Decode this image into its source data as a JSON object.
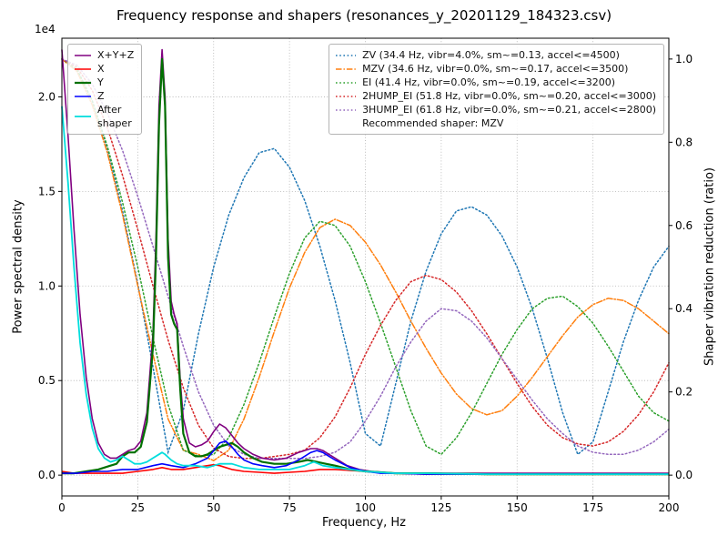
{
  "chart_data": {
    "type": "line",
    "title": "Frequency response and shapers (resonances_y_20201129_184323.csv)",
    "xlabel": "Frequency, Hz",
    "ylabel_left": "Power spectral density",
    "ylabel_right": "Shaper vibration reduction (ratio)",
    "axis_multiplier_label": "1e4",
    "grid_color": "#b0b0b0",
    "xlim": [
      0,
      200
    ],
    "x_ticks": [
      0,
      25,
      50,
      75,
      100,
      125,
      150,
      175,
      200
    ],
    "left_axis": {
      "unit": "1e4",
      "lim": [
        -0.11,
        2.31
      ],
      "tick_values": [
        0.0,
        0.5,
        1.0,
        1.5,
        2.0
      ],
      "tick_labels": [
        "0.0",
        "0.5",
        "1.0",
        "1.5",
        "2.0"
      ]
    },
    "right_axis": {
      "lim": [
        -0.05,
        1.05
      ],
      "tick_values": [
        0.0,
        0.2,
        0.4,
        0.6,
        0.8,
        1.0
      ],
      "tick_labels": [
        "0.0",
        "0.2",
        "0.4",
        "0.6",
        "0.8",
        "1.0"
      ]
    },
    "legend_note": "Recommended shaper: MZV",
    "psd_series": [
      {
        "label": "X+Y+Z",
        "color": "#800080",
        "linestyle": "solid",
        "width": 1.6,
        "x": [
          0,
          2,
          4,
          6,
          8,
          10,
          12,
          14,
          16,
          18,
          20,
          22,
          24,
          26,
          28,
          30,
          31,
          32,
          33,
          34,
          35,
          36,
          37,
          38,
          39,
          40,
          42,
          44,
          46,
          48,
          50,
          52,
          54,
          56,
          58,
          60,
          63,
          66,
          70,
          74,
          78,
          80,
          82,
          84,
          86,
          88,
          90,
          94,
          98,
          102,
          106,
          110,
          120,
          140,
          160,
          180,
          200
        ],
        "y": [
          2.25,
          1.8,
          1.3,
          0.85,
          0.52,
          0.3,
          0.17,
          0.11,
          0.09,
          0.09,
          0.11,
          0.13,
          0.14,
          0.18,
          0.33,
          0.75,
          1.25,
          1.95,
          2.25,
          2.0,
          1.25,
          0.92,
          0.85,
          0.8,
          0.5,
          0.3,
          0.17,
          0.15,
          0.16,
          0.18,
          0.23,
          0.27,
          0.25,
          0.21,
          0.17,
          0.14,
          0.11,
          0.09,
          0.08,
          0.09,
          0.12,
          0.13,
          0.14,
          0.14,
          0.13,
          0.11,
          0.09,
          0.05,
          0.03,
          0.02,
          0.015,
          0.01,
          0.01,
          0.01,
          0.01,
          0.01,
          0.01
        ]
      },
      {
        "label": "X",
        "color": "#ff0000",
        "linestyle": "solid",
        "width": 1.6,
        "x": [
          0,
          4,
          8,
          12,
          16,
          20,
          25,
          30,
          33,
          36,
          40,
          44,
          48,
          50,
          52,
          54,
          56,
          60,
          65,
          70,
          75,
          80,
          85,
          90,
          95,
          100,
          110,
          120,
          140,
          160,
          180,
          200
        ],
        "y": [
          0.02,
          0.01,
          0.01,
          0.01,
          0.01,
          0.01,
          0.02,
          0.03,
          0.04,
          0.03,
          0.03,
          0.04,
          0.05,
          0.055,
          0.05,
          0.04,
          0.03,
          0.02,
          0.015,
          0.01,
          0.015,
          0.02,
          0.03,
          0.03,
          0.025,
          0.02,
          0.01,
          0.005,
          0.005,
          0.005,
          0.005,
          0.005
        ]
      },
      {
        "label": "Y",
        "color": "#007000",
        "linestyle": "solid",
        "width": 2.2,
        "x": [
          0,
          4,
          8,
          12,
          16,
          18,
          20,
          22,
          24,
          26,
          28,
          30,
          31,
          32,
          33,
          34,
          35,
          36,
          37,
          38,
          39,
          40,
          42,
          44,
          46,
          48,
          50,
          52,
          54,
          56,
          58,
          60,
          63,
          66,
          70,
          74,
          78,
          81,
          84,
          87,
          90,
          95,
          100,
          105,
          110,
          120,
          140,
          160,
          180,
          200
        ],
        "y": [
          0.01,
          0.01,
          0.02,
          0.03,
          0.05,
          0.06,
          0.1,
          0.12,
          0.12,
          0.15,
          0.28,
          0.68,
          1.15,
          1.85,
          2.2,
          1.95,
          1.15,
          0.85,
          0.8,
          0.77,
          0.45,
          0.22,
          0.12,
          0.1,
          0.1,
          0.11,
          0.13,
          0.15,
          0.16,
          0.17,
          0.15,
          0.12,
          0.09,
          0.07,
          0.06,
          0.06,
          0.07,
          0.08,
          0.07,
          0.06,
          0.05,
          0.03,
          0.02,
          0.015,
          0.01,
          0.01,
          0.005,
          0.005,
          0.005,
          0.005
        ]
      },
      {
        "label": "Z",
        "color": "#0000ff",
        "linestyle": "solid",
        "width": 1.6,
        "x": [
          0,
          5,
          10,
          15,
          20,
          25,
          30,
          33,
          36,
          40,
          44,
          48,
          50,
          52,
          54,
          56,
          58,
          60,
          63,
          66,
          70,
          74,
          78,
          80,
          82,
          84,
          86,
          88,
          90,
          95,
          100,
          105,
          110,
          120,
          140,
          160,
          180,
          200
        ],
        "y": [
          0.01,
          0.01,
          0.02,
          0.02,
          0.03,
          0.03,
          0.05,
          0.06,
          0.05,
          0.04,
          0.06,
          0.09,
          0.13,
          0.17,
          0.18,
          0.15,
          0.11,
          0.08,
          0.06,
          0.05,
          0.04,
          0.05,
          0.08,
          0.1,
          0.12,
          0.13,
          0.12,
          0.1,
          0.08,
          0.04,
          0.02,
          0.01,
          0.01,
          0.005,
          0.005,
          0.005,
          0.005,
          0.005
        ]
      },
      {
        "label": "After\nshaper",
        "color": "#00dddd",
        "linestyle": "solid",
        "width": 1.8,
        "x": [
          0,
          2,
          4,
          6,
          8,
          10,
          12,
          14,
          16,
          18,
          20,
          22,
          24,
          26,
          28,
          30,
          32,
          33,
          34,
          36,
          38,
          40,
          44,
          48,
          52,
          56,
          60,
          65,
          70,
          75,
          80,
          83,
          86,
          90,
          95,
          100,
          110,
          120,
          140,
          160,
          180,
          200
        ],
        "y": [
          1.95,
          1.55,
          1.1,
          0.7,
          0.43,
          0.25,
          0.14,
          0.09,
          0.07,
          0.08,
          0.1,
          0.08,
          0.06,
          0.06,
          0.07,
          0.09,
          0.11,
          0.12,
          0.11,
          0.08,
          0.06,
          0.05,
          0.05,
          0.04,
          0.06,
          0.06,
          0.04,
          0.03,
          0.03,
          0.03,
          0.05,
          0.07,
          0.05,
          0.04,
          0.03,
          0.02,
          0.01,
          0.01,
          0.005,
          0.005,
          0.005,
          0.005
        ]
      }
    ],
    "shaper_series": [
      {
        "label": "ZV (34.4 Hz, vibr=4.0%, sm~=0.13, accel<=4500)",
        "color": "#1f77b4",
        "linestyle": "dotted",
        "x_step": 5,
        "y": [
          1.0,
          0.975,
          0.9,
          0.785,
          0.635,
          0.46,
          0.26,
          0.055,
          0.155,
          0.34,
          0.5,
          0.625,
          0.715,
          0.775,
          0.785,
          0.74,
          0.66,
          0.55,
          0.42,
          0.27,
          0.1,
          0.07,
          0.22,
          0.37,
          0.49,
          0.58,
          0.635,
          0.645,
          0.625,
          0.575,
          0.5,
          0.4,
          0.28,
          0.15,
          0.05,
          0.08,
          0.2,
          0.32,
          0.42,
          0.5,
          0.55
        ]
      },
      {
        "label": "MZV (34.6 Hz, vibr=0.0%, sm~=0.17, accel<=3500)",
        "color": "#ff7f0e",
        "linestyle": "dashdot",
        "x_step": 5,
        "y": [
          1.0,
          0.97,
          0.89,
          0.775,
          0.625,
          0.455,
          0.29,
          0.135,
          0.06,
          0.05,
          0.035,
          0.06,
          0.135,
          0.235,
          0.345,
          0.45,
          0.535,
          0.595,
          0.615,
          0.6,
          0.56,
          0.505,
          0.44,
          0.37,
          0.305,
          0.245,
          0.195,
          0.16,
          0.145,
          0.155,
          0.19,
          0.235,
          0.285,
          0.335,
          0.38,
          0.41,
          0.425,
          0.42,
          0.4,
          0.37,
          0.34
        ]
      },
      {
        "label": "EI (41.4 Hz, vibr=0.0%, sm~=0.19, accel<=3200)",
        "color": "#2ca02c",
        "linestyle": "dotted",
        "x_step": 5,
        "y": [
          1.0,
          0.975,
          0.9,
          0.79,
          0.655,
          0.5,
          0.33,
          0.17,
          0.06,
          0.045,
          0.05,
          0.09,
          0.17,
          0.27,
          0.38,
          0.485,
          0.57,
          0.61,
          0.6,
          0.55,
          0.465,
          0.365,
          0.26,
          0.155,
          0.07,
          0.05,
          0.09,
          0.15,
          0.22,
          0.29,
          0.35,
          0.4,
          0.425,
          0.43,
          0.405,
          0.365,
          0.31,
          0.25,
          0.19,
          0.15,
          0.13
        ]
      },
      {
        "label": "2HUMP_EI (51.8 Hz, vibr=0.0%, sm~=0.20, accel<=3000)",
        "color": "#d62728",
        "linestyle": "dotted",
        "x_step": 5,
        "y": [
          1.0,
          0.98,
          0.925,
          0.835,
          0.72,
          0.59,
          0.455,
          0.325,
          0.21,
          0.12,
          0.065,
          0.045,
          0.04,
          0.04,
          0.045,
          0.05,
          0.06,
          0.09,
          0.14,
          0.21,
          0.29,
          0.36,
          0.42,
          0.465,
          0.48,
          0.47,
          0.44,
          0.395,
          0.34,
          0.28,
          0.22,
          0.165,
          0.12,
          0.09,
          0.075,
          0.07,
          0.08,
          0.105,
          0.145,
          0.2,
          0.27
        ]
      },
      {
        "label": "3HUMP_EI (61.8 Hz, vibr=0.0%, sm~=0.21, accel<=2800)",
        "color": "#9467bd",
        "linestyle": "dotted",
        "x_step": 5,
        "y": [
          1.0,
          0.985,
          0.94,
          0.87,
          0.78,
          0.67,
          0.55,
          0.43,
          0.31,
          0.2,
          0.12,
          0.07,
          0.05,
          0.04,
          0.04,
          0.04,
          0.04,
          0.045,
          0.055,
          0.08,
          0.13,
          0.19,
          0.26,
          0.32,
          0.37,
          0.4,
          0.395,
          0.37,
          0.33,
          0.28,
          0.23,
          0.18,
          0.135,
          0.1,
          0.07,
          0.055,
          0.05,
          0.05,
          0.06,
          0.08,
          0.11
        ]
      }
    ]
  }
}
